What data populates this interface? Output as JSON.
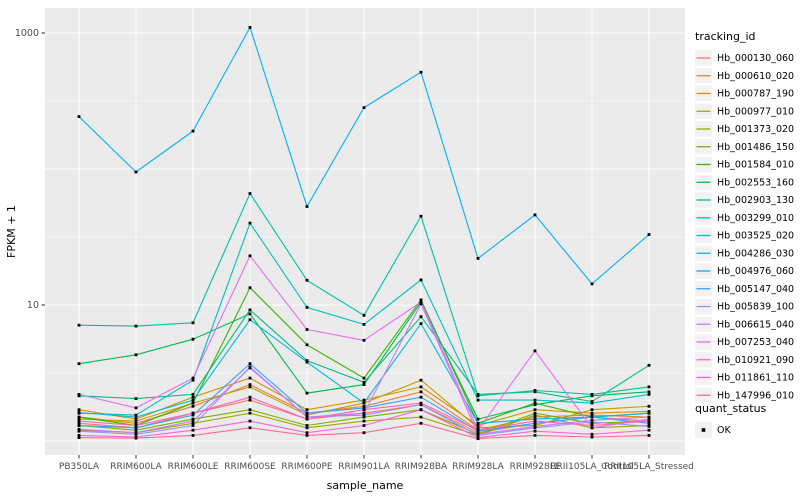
{
  "figure": {
    "background": "#FFFFFF",
    "panel_background": "#EBEBEB",
    "gridline_color": "#FFFFFF",
    "tick_color": "#333333",
    "tick_label_color": "#4D4D4D",
    "axis_title_color": "#000000",
    "point_color": "#000000",
    "legend_key_fill": "#F2F2F2"
  },
  "chart_data": {
    "type": "line",
    "title": "",
    "xlabel": "sample_name",
    "ylabel": "FPKM + 1",
    "y_scale": "log10",
    "ylim": [
      0.8,
      1550
    ],
    "grid": true,
    "legend_position": "right",
    "legend_title": "tracking_id",
    "y_ticks": [
      {
        "label": "1000",
        "value": 1000
      },
      {
        "label": "10",
        "value": 10
      }
    ],
    "y_major_gridlines": [
      1,
      10,
      100,
      1000
    ],
    "y_minor_gridlines": [
      3.162,
      31.62,
      316.2
    ],
    "categories": [
      "PB350LA",
      "RRIM600LA",
      "RRIM600LE",
      "RRIM600SE",
      "RRIM600PE",
      "RRIM901LA",
      "RRIM928BA",
      "RRIM928LA",
      "RRIM928LE",
      "RRII105LA_Control",
      "RRII105LA_Stressed"
    ],
    "series": [
      {
        "name": "Hb_000130_060",
        "color": "#F8766D",
        "values": [
          1.35,
          1.25,
          1.6,
          2.0,
          1.45,
          1.6,
          1.85,
          1.15,
          1.35,
          1.5,
          1.4
        ]
      },
      {
        "name": "Hb_000610_020",
        "color": "#EA8331",
        "values": [
          1.5,
          1.35,
          1.8,
          2.6,
          1.6,
          1.8,
          2.3,
          1.2,
          1.5,
          1.55,
          1.5
        ]
      },
      {
        "name": "Hb_000787_190",
        "color": "#D89000",
        "values": [
          1.7,
          1.45,
          2.1,
          2.9,
          1.7,
          2.0,
          2.5,
          1.3,
          1.7,
          1.6,
          1.65
        ]
      },
      {
        "name": "Hb_000977_010",
        "color": "#C09B00",
        "values": [
          1.45,
          1.4,
          1.9,
          2.5,
          1.55,
          1.9,
          2.8,
          1.25,
          1.3,
          1.7,
          1.8
        ]
      },
      {
        "name": "Hb_001373_020",
        "color": "#A3A500",
        "values": [
          1.2,
          1.15,
          1.35,
          1.6,
          1.25,
          1.4,
          1.5,
          1.1,
          1.55,
          1.25,
          1.3
        ]
      },
      {
        "name": "Hb_001486_150",
        "color": "#7CAE00",
        "values": [
          1.3,
          1.2,
          1.45,
          1.7,
          1.3,
          1.5,
          1.7,
          1.12,
          1.6,
          1.35,
          1.4
        ]
      },
      {
        "name": "Hb_001584_010",
        "color": "#39B600",
        "values": [
          1.5,
          1.3,
          1.9,
          13.4,
          5.1,
          2.9,
          10.9,
          1.35,
          1.9,
          1.5,
          1.6
        ]
      },
      {
        "name": "Hb_002553_160",
        "color": "#00BB4E",
        "values": [
          3.7,
          4.3,
          5.6,
          8.6,
          2.25,
          2.6,
          10.5,
          1.45,
          1.85,
          2.15,
          2.3
        ]
      },
      {
        "name": "Hb_002903_130",
        "color": "#00BF7D",
        "values": [
          2.15,
          2.05,
          2.2,
          9.2,
          3.9,
          2.7,
          8.2,
          2.2,
          2.3,
          1.95,
          3.6
        ]
      },
      {
        "name": "Hb_003299_010",
        "color": "#00C1A3",
        "values": [
          7.1,
          7.0,
          7.4,
          66,
          15.2,
          8.4,
          45,
          2.15,
          2.35,
          2.2,
          2.5
        ]
      },
      {
        "name": "Hb_003525_020",
        "color": "#00BFC4",
        "values": [
          1.6,
          1.55,
          2.8,
          40,
          9.6,
          7.2,
          15.3,
          2.0,
          2.0,
          1.9,
          2.2
        ]
      },
      {
        "name": "Hb_004286_030",
        "color": "#00BAE0",
        "values": [
          1.62,
          1.5,
          2.0,
          7.8,
          3.8,
          1.9,
          7.3,
          1.35,
          1.45,
          1.5,
          1.6
        ]
      },
      {
        "name": "Hb_004976_060",
        "color": "#00B0F6",
        "values": [
          243,
          95,
          190,
          1100,
          53,
          283,
          515,
          22,
          46,
          14.3,
          33
        ]
      },
      {
        "name": "Hb_005147_040",
        "color": "#35A2FF",
        "values": [
          1.3,
          1.25,
          1.55,
          3.7,
          1.6,
          1.75,
          2.1,
          1.18,
          1.35,
          1.5,
          1.35
        ]
      },
      {
        "name": "Hb_005839_100",
        "color": "#9590FF",
        "values": [
          1.18,
          1.12,
          1.3,
          3.5,
          1.5,
          1.55,
          1.85,
          1.1,
          1.25,
          1.38,
          1.28
        ]
      },
      {
        "name": "Hb_006615_040",
        "color": "#C77CFF",
        "values": [
          1.22,
          1.15,
          1.4,
          3.45,
          1.5,
          1.6,
          10.2,
          1.12,
          1.28,
          1.42,
          1.5
        ]
      },
      {
        "name": "Hb_007253_040",
        "color": "#E76BF3",
        "values": [
          2.2,
          1.75,
          2.9,
          23,
          6.6,
          5.5,
          10.5,
          1.2,
          4.6,
          1.25,
          1.45
        ]
      },
      {
        "name": "Hb_010921_090",
        "color": "#FA62DB",
        "values": [
          1.1,
          1.07,
          1.2,
          1.4,
          1.15,
          1.3,
          1.7,
          1.06,
          1.18,
          1.12,
          1.2
        ]
      },
      {
        "name": "Hb_011861_110",
        "color": "#FF62BC",
        "values": [
          1.4,
          1.3,
          1.6,
          2.1,
          1.45,
          1.7,
          1.9,
          1.2,
          1.4,
          1.3,
          1.4
        ]
      },
      {
        "name": "Hb_147996_010",
        "color": "#FF6A98",
        "values": [
          1.06,
          1.05,
          1.1,
          1.25,
          1.1,
          1.15,
          1.35,
          1.04,
          1.1,
          1.07,
          1.1
        ]
      }
    ],
    "quant_status": {
      "title": "quant_status",
      "items": [
        {
          "label": "OK",
          "color": "#000000"
        }
      ]
    }
  }
}
